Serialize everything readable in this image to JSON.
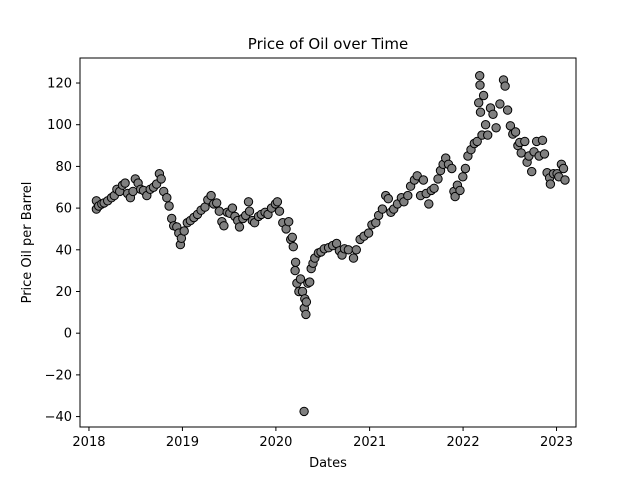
{
  "chart_data": {
    "type": "scatter",
    "title": "Price of Oil over Time",
    "xlabel": "Dates",
    "ylabel": "Price Oil per Barrel",
    "x_type": "date",
    "xlim": [
      "2017-11-27",
      "2023-03-18"
    ],
    "ylim": [
      -45,
      132
    ],
    "xticks": [
      {
        "value": "2018-01-01",
        "label": "2018"
      },
      {
        "value": "2019-01-01",
        "label": "2019"
      },
      {
        "value": "2020-01-01",
        "label": "2020"
      },
      {
        "value": "2021-01-01",
        "label": "2021"
      },
      {
        "value": "2022-01-01",
        "label": "2022"
      },
      {
        "value": "2023-01-01",
        "label": "2023"
      }
    ],
    "yticks": [
      -40,
      -20,
      0,
      20,
      40,
      60,
      80,
      100,
      120
    ],
    "grid": false,
    "marker": {
      "shape": "circle",
      "fill": "#808080",
      "edge": "#000000"
    },
    "points": [
      [
        "2018-01-30",
        59.5
      ],
      [
        "2018-01-30",
        63.5
      ],
      [
        "2018-02-08",
        61
      ],
      [
        "2018-02-20",
        62
      ],
      [
        "2018-03-01",
        62.5
      ],
      [
        "2018-03-15",
        63.5
      ],
      [
        "2018-03-30",
        65
      ],
      [
        "2018-04-10",
        66
      ],
      [
        "2018-04-20",
        69
      ],
      [
        "2018-05-01",
        68
      ],
      [
        "2018-05-12",
        71
      ],
      [
        "2018-05-22",
        72
      ],
      [
        "2018-06-01",
        67
      ],
      [
        "2018-06-12",
        65
      ],
      [
        "2018-06-22",
        68
      ],
      [
        "2018-07-01",
        74
      ],
      [
        "2018-07-12",
        72
      ],
      [
        "2018-07-22",
        69
      ],
      [
        "2018-08-02",
        68.5
      ],
      [
        "2018-08-15",
        66
      ],
      [
        "2018-08-28",
        69
      ],
      [
        "2018-09-10",
        70
      ],
      [
        "2018-09-22",
        71.5
      ],
      [
        "2018-10-03",
        76.5
      ],
      [
        "2018-10-10",
        74
      ],
      [
        "2018-10-20",
        68
      ],
      [
        "2018-11-01",
        65
      ],
      [
        "2018-11-10",
        61
      ],
      [
        "2018-11-20",
        55
      ],
      [
        "2018-11-28",
        51.5
      ],
      [
        "2018-12-10",
        51
      ],
      [
        "2018-12-18",
        48
      ],
      [
        "2018-12-24",
        42.5
      ],
      [
        "2018-12-28",
        45.5
      ],
      [
        "2019-01-08",
        49
      ],
      [
        "2019-01-20",
        53
      ],
      [
        "2019-02-01",
        54
      ],
      [
        "2019-02-15",
        55.5
      ],
      [
        "2019-03-01",
        57
      ],
      [
        "2019-03-15",
        59
      ],
      [
        "2019-03-30",
        60.5
      ],
      [
        "2019-04-10",
        64
      ],
      [
        "2019-04-23",
        66
      ],
      [
        "2019-05-03",
        62
      ],
      [
        "2019-05-15",
        62.5
      ],
      [
        "2019-05-25",
        58.5
      ],
      [
        "2019-06-04",
        53.5
      ],
      [
        "2019-06-12",
        51.5
      ],
      [
        "2019-06-25",
        58
      ],
      [
        "2019-07-05",
        57.5
      ],
      [
        "2019-07-15",
        60
      ],
      [
        "2019-07-25",
        56
      ],
      [
        "2019-08-05",
        54
      ],
      [
        "2019-08-12",
        51
      ],
      [
        "2019-08-25",
        55
      ],
      [
        "2019-09-05",
        56.5
      ],
      [
        "2019-09-16",
        63
      ],
      [
        "2019-09-20",
        58.5
      ],
      [
        "2019-10-01",
        54
      ],
      [
        "2019-10-10",
        53
      ],
      [
        "2019-10-25",
        56
      ],
      [
        "2019-11-05",
        57
      ],
      [
        "2019-11-20",
        58
      ],
      [
        "2019-12-01",
        57
      ],
      [
        "2019-12-15",
        60
      ],
      [
        "2019-12-30",
        62
      ],
      [
        "2020-01-07",
        63
      ],
      [
        "2020-01-15",
        58.5
      ],
      [
        "2020-01-28",
        53
      ],
      [
        "2020-02-10",
        50
      ],
      [
        "2020-02-20",
        53.5
      ],
      [
        "2020-02-28",
        45
      ],
      [
        "2020-03-05",
        46
      ],
      [
        "2020-03-09",
        41.5
      ],
      [
        "2020-03-16",
        30
      ],
      [
        "2020-03-18",
        34
      ],
      [
        "2020-03-23",
        24
      ],
      [
        "2020-03-31",
        20
      ],
      [
        "2020-04-06",
        26
      ],
      [
        "2020-04-14",
        20
      ],
      [
        "2020-04-20",
        -37.5
      ],
      [
        "2020-04-21",
        12
      ],
      [
        "2020-04-23",
        16.5
      ],
      [
        "2020-04-27",
        9
      ],
      [
        "2020-04-29",
        15
      ],
      [
        "2020-05-05",
        24
      ],
      [
        "2020-05-12",
        24.5
      ],
      [
        "2020-05-18",
        31
      ],
      [
        "2020-05-25",
        33.5
      ],
      [
        "2020-06-01",
        36
      ],
      [
        "2020-06-15",
        38.5
      ],
      [
        "2020-06-25",
        39
      ],
      [
        "2020-07-08",
        40.5
      ],
      [
        "2020-07-25",
        41
      ],
      [
        "2020-08-10",
        42
      ],
      [
        "2020-08-25",
        43
      ],
      [
        "2020-09-05",
        39.5
      ],
      [
        "2020-09-15",
        37.5
      ],
      [
        "2020-09-25",
        40.5
      ],
      [
        "2020-10-10",
        40
      ],
      [
        "2020-10-30",
        36
      ],
      [
        "2020-11-10",
        40
      ],
      [
        "2020-11-25",
        45
      ],
      [
        "2020-12-10",
        46.5
      ],
      [
        "2020-12-28",
        48
      ],
      [
        "2021-01-10",
        52
      ],
      [
        "2021-01-25",
        53
      ],
      [
        "2021-02-05",
        56.5
      ],
      [
        "2021-02-20",
        59.5
      ],
      [
        "2021-03-05",
        66
      ],
      [
        "2021-03-15",
        64.5
      ],
      [
        "2021-03-25",
        58
      ],
      [
        "2021-04-05",
        59.5
      ],
      [
        "2021-04-20",
        62
      ],
      [
        "2021-05-05",
        65
      ],
      [
        "2021-05-15",
        63
      ],
      [
        "2021-05-30",
        66
      ],
      [
        "2021-06-10",
        70.5
      ],
      [
        "2021-06-25",
        73.5
      ],
      [
        "2021-07-06",
        75.5
      ],
      [
        "2021-07-19",
        66
      ],
      [
        "2021-07-30",
        73.5
      ],
      [
        "2021-08-10",
        67
      ],
      [
        "2021-08-20",
        62
      ],
      [
        "2021-08-30",
        68.5
      ],
      [
        "2021-09-10",
        69.5
      ],
      [
        "2021-09-25",
        74
      ],
      [
        "2021-10-05",
        78
      ],
      [
        "2021-10-15",
        81
      ],
      [
        "2021-10-25",
        84
      ],
      [
        "2021-11-05",
        81
      ],
      [
        "2021-11-18",
        79
      ],
      [
        "2021-11-26",
        68
      ],
      [
        "2021-12-01",
        65.5
      ],
      [
        "2021-12-10",
        71
      ],
      [
        "2021-12-20",
        68.5
      ],
      [
        "2021-12-31",
        75
      ],
      [
        "2022-01-10",
        79
      ],
      [
        "2022-01-20",
        85
      ],
      [
        "2022-02-01",
        88
      ],
      [
        "2022-02-14",
        91
      ],
      [
        "2022-02-25",
        92
      ],
      [
        "2022-03-03",
        110.5
      ],
      [
        "2022-03-07",
        123.5
      ],
      [
        "2022-03-08",
        119
      ],
      [
        "2022-03-10",
        106
      ],
      [
        "2022-03-16",
        95
      ],
      [
        "2022-03-22",
        114
      ],
      [
        "2022-03-30",
        100
      ],
      [
        "2022-04-07",
        95
      ],
      [
        "2022-04-18",
        108
      ],
      [
        "2022-04-28",
        105
      ],
      [
        "2022-05-10",
        98.5
      ],
      [
        "2022-05-25",
        110
      ],
      [
        "2022-06-08",
        121.5
      ],
      [
        "2022-06-14",
        118.5
      ],
      [
        "2022-06-24",
        107
      ],
      [
        "2022-07-05",
        99.5
      ],
      [
        "2022-07-14",
        95.5
      ],
      [
        "2022-07-25",
        96.5
      ],
      [
        "2022-08-03",
        90
      ],
      [
        "2022-08-10",
        91.5
      ],
      [
        "2022-08-16",
        86.5
      ],
      [
        "2022-08-30",
        92
      ],
      [
        "2022-09-08",
        82
      ],
      [
        "2022-09-15",
        85
      ],
      [
        "2022-09-26",
        77.5
      ],
      [
        "2022-10-05",
        87
      ],
      [
        "2022-10-15",
        92
      ],
      [
        "2022-10-25",
        85
      ],
      [
        "2022-11-07",
        92.5
      ],
      [
        "2022-11-15",
        86
      ],
      [
        "2022-11-25",
        77
      ],
      [
        "2022-12-05",
        74.5
      ],
      [
        "2022-12-08",
        71.5
      ],
      [
        "2022-12-20",
        76.5
      ],
      [
        "2023-01-03",
        76.5
      ],
      [
        "2023-01-10",
        75
      ],
      [
        "2023-01-20",
        81
      ],
      [
        "2023-01-28",
        79
      ],
      [
        "2023-02-03",
        73.5
      ]
    ]
  }
}
